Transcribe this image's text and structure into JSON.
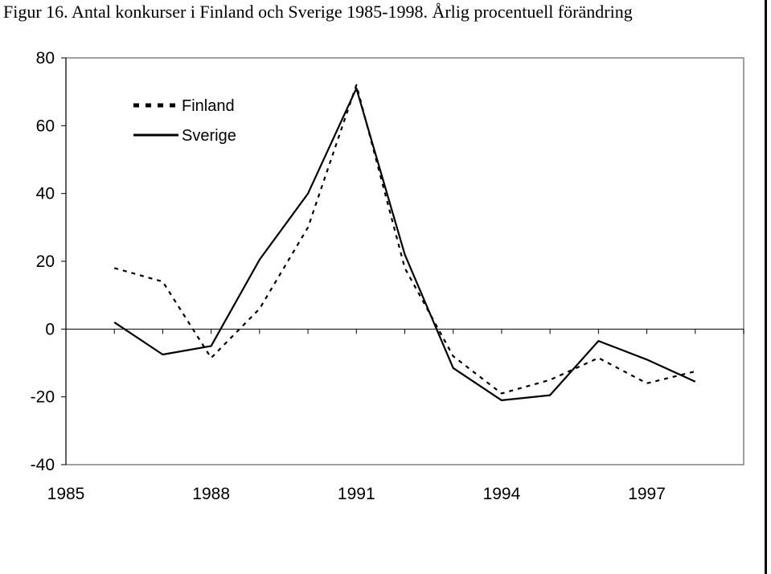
{
  "caption": "Figur 16. Antal konkurser i Finland och Sverige 1985-1998. Årlig procentuell förändring",
  "chart_data": {
    "type": "line",
    "title": "",
    "xlabel": "",
    "ylabel": "",
    "xlim": [
      1985,
      1999
    ],
    "ylim": [
      -40,
      80
    ],
    "yticks": [
      -40,
      -20,
      0,
      20,
      40,
      60,
      80
    ],
    "xticks": [
      1985,
      1988,
      1991,
      1994,
      1997
    ],
    "grid": false,
    "legend_position": "top-left",
    "x": [
      1986,
      1987,
      1988,
      1989,
      1990,
      1991,
      1992,
      1993,
      1994,
      1995,
      1996,
      1997,
      1998
    ],
    "series": [
      {
        "name": "Finland",
        "style": "dotted",
        "color": "#000000",
        "values": [
          18,
          14,
          -8.5,
          6,
          30,
          72,
          18,
          -8,
          -19,
          -15,
          -8.5,
          -16,
          -12.5
        ]
      },
      {
        "name": "Sverige",
        "style": "solid",
        "color": "#000000",
        "values": [
          2,
          -7.5,
          -5,
          20.5,
          40,
          71,
          22,
          -11.5,
          -21,
          -19.5,
          -3.5,
          -9,
          -15.5
        ]
      }
    ]
  }
}
